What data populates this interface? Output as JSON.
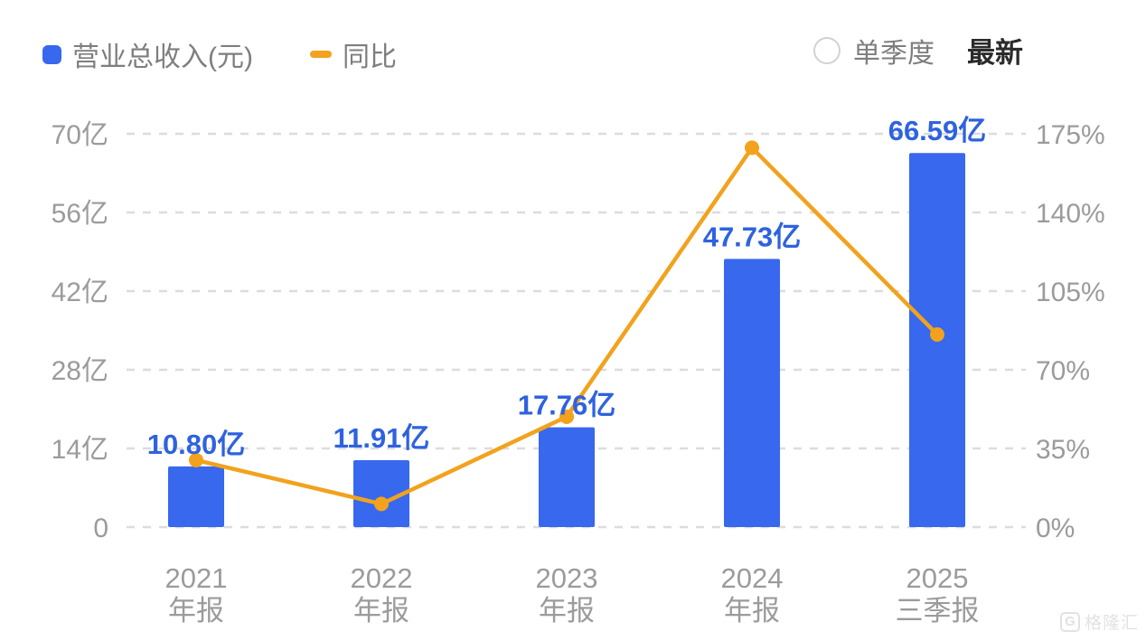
{
  "legend": {
    "series1_label": "营业总收入(元)",
    "series2_label": "同比"
  },
  "controls": {
    "single_quarter_label": "单季度",
    "latest_label": "最新"
  },
  "watermark": {
    "logo_letter": "G",
    "text": "格隆汇"
  },
  "colors": {
    "bar": "#3768ee",
    "line": "#f2a21d",
    "value_label": "#2e62df",
    "axis_text": "#9b9b9b",
    "grid": "#dcdcdc",
    "legend_text": "#7e7e7e",
    "latest_text": "#2b2b2b"
  },
  "chart_data": {
    "type": "bar+line",
    "title": "",
    "categories": [
      [
        "2021",
        "年报"
      ],
      [
        "2022",
        "年报"
      ],
      [
        "2023",
        "年报"
      ],
      [
        "2024",
        "年报"
      ],
      [
        "2025",
        "三季报"
      ]
    ],
    "series": [
      {
        "name": "营业总收入(元)",
        "type": "bar",
        "unit": "亿",
        "values": [
          10.8,
          11.91,
          17.76,
          47.73,
          66.59
        ],
        "labels": [
          "10.80亿",
          "11.91亿",
          "17.76亿",
          "47.73亿",
          "66.59亿"
        ],
        "color": "#3768ee"
      },
      {
        "name": "同比",
        "type": "line",
        "unit": "%",
        "values": [
          29.8,
          10.3,
          49.1,
          168.8,
          85.7
        ],
        "color": "#f2a21d"
      }
    ],
    "left_axis": {
      "ticks": [
        "0",
        "14亿",
        "28亿",
        "42亿",
        "56亿",
        "70亿"
      ],
      "min": 0,
      "max": 70
    },
    "right_axis": {
      "ticks": [
        "0%",
        "35%",
        "70%",
        "105%",
        "140%",
        "175%"
      ],
      "min": 0,
      "max": 175
    },
    "grid": "dashed-horizontal",
    "legend_position": "top-left"
  }
}
